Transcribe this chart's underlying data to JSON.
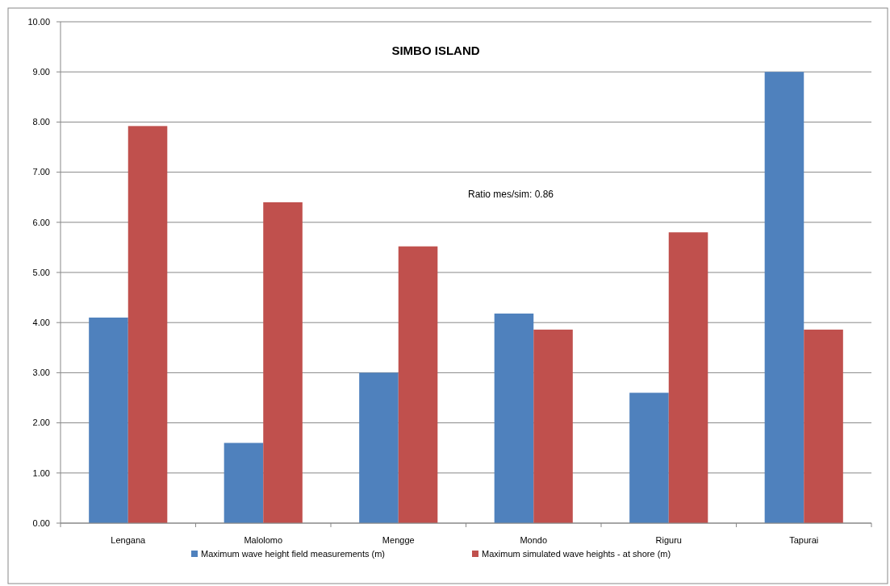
{
  "chart_data": {
    "type": "bar",
    "title": "SIMBO ISLAND",
    "categories": [
      "Lengana",
      "Malolomo",
      "Mengge",
      "Mondo",
      "Riguru",
      "Tapurai"
    ],
    "series": [
      {
        "name": "Maximum wave height field measurements (m)",
        "color": "#4f81bd",
        "values": [
          4.1,
          1.6,
          3.0,
          4.18,
          2.6,
          9.0
        ]
      },
      {
        "name": "Maximum simulated wave heights - at shore (m)",
        "color": "#c0504d",
        "values": [
          7.92,
          6.4,
          5.52,
          3.86,
          5.8,
          3.86
        ]
      }
    ],
    "ylim": [
      0,
      10
    ],
    "yticks": [
      {
        "value": 0,
        "label": "0.00"
      },
      {
        "value": 1,
        "label": "1.00"
      },
      {
        "value": 2,
        "label": "2.00"
      },
      {
        "value": 3,
        "label": "3.00"
      },
      {
        "value": 4,
        "label": "4.00"
      },
      {
        "value": 5,
        "label": "5.00"
      },
      {
        "value": 6,
        "label": "6.00"
      },
      {
        "value": 7,
        "label": "7.00"
      },
      {
        "value": 8,
        "label": "8.00"
      },
      {
        "value": 9,
        "label": "9.00"
      },
      {
        "value": 10,
        "label": "10.00"
      }
    ],
    "annotations": [
      "Ratio mes/sim: 0.86"
    ],
    "grid": "y",
    "legend": "bottom"
  }
}
